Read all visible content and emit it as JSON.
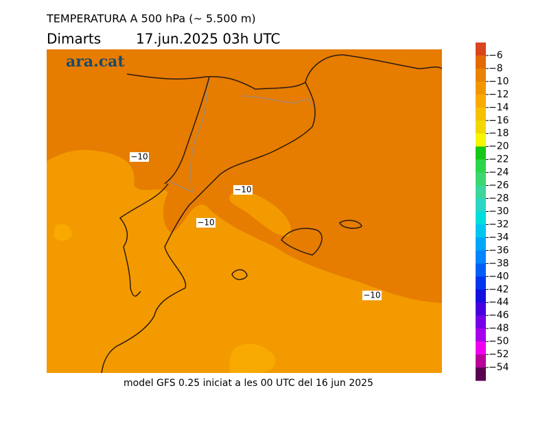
{
  "header": {
    "title": "TEMPERATURA A 500 hPa (~ 5.500 m)",
    "day": "Dimarts",
    "datetime": "17.jun.2025 03h UTC"
  },
  "logo": "ara.cat",
  "contour_labels": [
    "−10",
    "−10",
    "−10",
    "−10"
  ],
  "footer": "model GFS 0.25 iniciat a les 00 UTC del 16 jun 2025",
  "colorbar": {
    "ticks": [
      {
        "value": -6,
        "label": "−6"
      },
      {
        "value": -8,
        "label": "−8"
      },
      {
        "value": -10,
        "label": "−10"
      },
      {
        "value": -12,
        "label": "−12"
      },
      {
        "value": -14,
        "label": "−14"
      },
      {
        "value": -16,
        "label": "−16"
      },
      {
        "value": -18,
        "label": "−18"
      },
      {
        "value": -20,
        "label": "−20"
      },
      {
        "value": -22,
        "label": "−22"
      },
      {
        "value": -24,
        "label": "−24"
      },
      {
        "value": -26,
        "label": "−26"
      },
      {
        "value": -28,
        "label": "−28"
      },
      {
        "value": -30,
        "label": "−30"
      },
      {
        "value": -32,
        "label": "−32"
      },
      {
        "value": -34,
        "label": "−34"
      },
      {
        "value": -36,
        "label": "−36"
      },
      {
        "value": -38,
        "label": "−38"
      },
      {
        "value": -40,
        "label": "−40"
      },
      {
        "value": -42,
        "label": "−42"
      },
      {
        "value": -44,
        "label": "−44"
      },
      {
        "value": -46,
        "label": "−46"
      },
      {
        "value": -48,
        "label": "−48"
      },
      {
        "value": -50,
        "label": "−50"
      },
      {
        "value": -52,
        "label": "−52"
      },
      {
        "value": -54,
        "label": "−54"
      }
    ],
    "colors": [
      "#d8461e",
      "#e36a00",
      "#e98200",
      "#f29600",
      "#f8aa00",
      "#f6c000",
      "#f2d800",
      "#f6f600",
      "#16c816",
      "#2cd64a",
      "#3ed670",
      "#3cd69c",
      "#2cd6c4",
      "#00dede",
      "#00c6f0",
      "#00a6f8",
      "#0086ff",
      "#0060f6",
      "#0036ee",
      "#1410de",
      "#4600de",
      "#7600e6",
      "#a800e8",
      "#f000f0",
      "#b8009a",
      "#5a0050"
    ]
  }
}
